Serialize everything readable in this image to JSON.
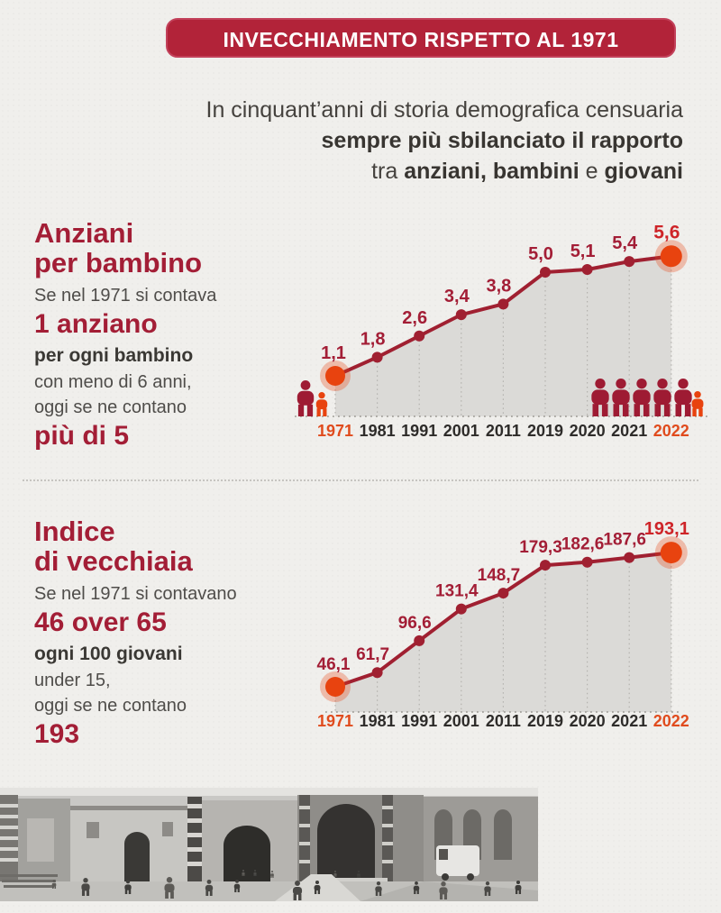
{
  "header": {
    "title": "INVECCHIAMENTO RISPETTO AL 1971"
  },
  "intro": {
    "line1": "In cinquant’anni di storia demografica censuaria",
    "line2": "sempre più sbilanciato il rapporto",
    "line3": [
      {
        "t": "tra ",
        "b": false
      },
      {
        "t": "anziani, bambini",
        "b": true
      },
      {
        "t": " e ",
        "b": false
      },
      {
        "t": "giovani",
        "b": true
      }
    ]
  },
  "section1": {
    "title_line1": "Anziani",
    "title_line2": "per bambino",
    "body": [
      {
        "text": "Se nel 1971 si contava",
        "style": "regular"
      },
      {
        "text": "1 anziano",
        "style": "big-red"
      },
      {
        "text": "per ogni bambino",
        "style": "bold-dark"
      },
      {
        "text": "con meno di 6 anni,",
        "style": "regular"
      },
      {
        "text": "oggi se ne contano",
        "style": "regular"
      },
      {
        "text": "più di 5",
        "style": "big-red"
      }
    ]
  },
  "section2": {
    "title_line1": "Indice",
    "title_line2": "di vecchiaia",
    "body": [
      {
        "text": "Se nel 1971 si contavano",
        "style": "regular"
      },
      {
        "text": "46 over 65",
        "style": "big-red"
      },
      {
        "text": "ogni 100 giovani",
        "style": "bold-dark"
      },
      {
        "text": "under 15,",
        "style": "regular"
      },
      {
        "text": "oggi se ne contano",
        "style": "regular"
      },
      {
        "text": "193",
        "style": "big-red"
      }
    ]
  },
  "chart_data": [
    {
      "type": "line",
      "title": "Anziani per bambino",
      "categories": [
        "1971",
        "1981",
        "1991",
        "2001",
        "2011",
        "2019",
        "2020",
        "2021",
        "2022"
      ],
      "values": [
        1.1,
        1.8,
        2.6,
        3.4,
        3.8,
        5.0,
        5.1,
        5.4,
        5.6
      ],
      "labels": [
        "1,1",
        "1,8",
        "2,6",
        "3,4",
        "3,8",
        "5,0",
        "5,1",
        "5,4",
        "5,6"
      ],
      "highlight_years": [
        "1971",
        "2022"
      ],
      "xlabel": "",
      "ylabel": "",
      "ylim": [
        0,
        6
      ],
      "grid": "dotted-vertical",
      "legend": "none",
      "area_fill": true
    },
    {
      "type": "line",
      "title": "Indice di vecchiaia",
      "categories": [
        "1971",
        "1981",
        "1991",
        "2001",
        "2011",
        "2019",
        "2020",
        "2021",
        "2022"
      ],
      "values": [
        46.1,
        61.7,
        96.6,
        131.4,
        148.7,
        179.3,
        182.6,
        187.6,
        193.1
      ],
      "labels": [
        "46,1",
        "61,7",
        "96,6",
        "131,4",
        "148,7",
        "179,3",
        "182,6",
        "187,6",
        "193,1"
      ],
      "highlight_years": [
        "1971",
        "2022"
      ],
      "xlabel": "",
      "ylabel": "",
      "ylim": [
        0,
        200
      ],
      "grid": "dotted-vertical",
      "legend": "none",
      "area_fill": true
    }
  ],
  "photo": {
    "description": "Black and white photograph of a cathedral square with people walking"
  },
  "colors": {
    "banner_bg": "#b22339",
    "line": "#a02031",
    "label": "#a31e36",
    "label_last": "#ce2428",
    "accent": "#e8430f",
    "year": "#2e2c2a",
    "year_highlight": "#e04b1d",
    "chart_fill": "#dbdad7",
    "person_adult": "#9e1b33",
    "person_child": "#e8430f"
  }
}
